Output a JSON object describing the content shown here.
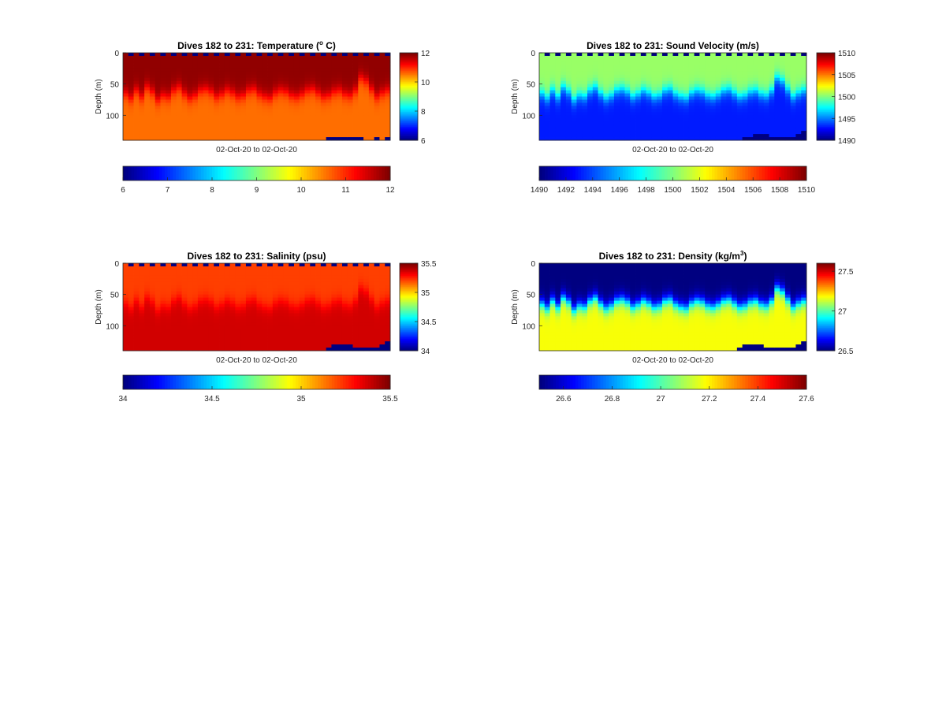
{
  "figure": {
    "background": "#ffffff",
    "colormap": "jet"
  },
  "chart_data": [
    {
      "type": "heatmap",
      "id": "temperature",
      "title_main": "Dives 182 to 231: Temperature (",
      "title_sup": "o",
      "title_tail": " C)",
      "xlabel": "02-Oct-20 to 02-Oct-20",
      "ylabel": "Depth (m)",
      "ylim": [
        0,
        140
      ],
      "yticks": [
        "0",
        "50",
        "100"
      ],
      "ytick_values": [
        0,
        50,
        100
      ],
      "n_columns": 50,
      "clim": [
        6,
        12
      ],
      "side_colorbar_ticks": [
        "6",
        "8",
        "10",
        "12"
      ],
      "side_colorbar_values": [
        6,
        8,
        10,
        12
      ],
      "bottom_colorbar_ticks": [
        "6",
        "7",
        "8",
        "9",
        "10",
        "11",
        "12"
      ],
      "bottom_colorbar_values": [
        6,
        7,
        8,
        9,
        10,
        11,
        12
      ],
      "surface_value": 11.9,
      "deep_value": 10.6,
      "transition_depth_m": [
        65,
        72,
        60,
        70,
        55,
        62,
        75,
        68,
        70,
        60,
        55,
        65,
        72,
        68,
        60,
        58,
        62,
        70,
        66,
        60,
        64,
        70,
        68,
        60,
        58,
        66,
        70,
        72,
        64,
        60,
        62,
        68,
        70,
        66,
        60,
        58,
        64,
        70,
        68,
        62,
        60,
        66,
        68,
        60,
        40,
        45,
        58,
        70,
        64,
        60
      ],
      "no_data_value": 6,
      "missing_bottom_depth_m": [
        140,
        140,
        140,
        140,
        140,
        140,
        140,
        140,
        140,
        140,
        140,
        140,
        140,
        140,
        140,
        140,
        140,
        140,
        140,
        140,
        140,
        140,
        140,
        140,
        140,
        140,
        140,
        140,
        140,
        140,
        140,
        140,
        140,
        140,
        140,
        140,
        140,
        140,
        137,
        133,
        133,
        135,
        136,
        136,
        137,
        138,
        138,
        136,
        138,
        133
      ]
    },
    {
      "type": "heatmap",
      "id": "sound-velocity",
      "title_main": "Dives 182 to 231: Sound Velocity (m/s)",
      "title_sup": "",
      "title_tail": "",
      "xlabel": "02-Oct-20 to 02-Oct-20",
      "ylabel": "Depth (m)",
      "ylim": [
        0,
        140
      ],
      "yticks": [
        "0",
        "50",
        "100"
      ],
      "ytick_values": [
        0,
        50,
        100
      ],
      "n_columns": 50,
      "clim": [
        1490,
        1510
      ],
      "side_colorbar_ticks": [
        "1490",
        "1495",
        "1500",
        "1505",
        "1510"
      ],
      "side_colorbar_values": [
        1490,
        1495,
        1500,
        1505,
        1510
      ],
      "bottom_colorbar_ticks": [
        "1490",
        "1492",
        "1494",
        "1496",
        "1498",
        "1500",
        "1502",
        "1504",
        "1506",
        "1508",
        "1510"
      ],
      "bottom_colorbar_values": [
        1490,
        1492,
        1494,
        1496,
        1498,
        1500,
        1502,
        1504,
        1506,
        1508,
        1510
      ],
      "surface_value": 1500.5,
      "deep_value": 1493,
      "transition_depth_m": [
        65,
        72,
        60,
        70,
        55,
        62,
        75,
        68,
        70,
        60,
        55,
        65,
        72,
        68,
        60,
        58,
        62,
        70,
        66,
        60,
        64,
        70,
        68,
        60,
        58,
        66,
        70,
        72,
        64,
        60,
        62,
        68,
        70,
        66,
        60,
        58,
        64,
        70,
        68,
        62,
        60,
        66,
        68,
        60,
        40,
        45,
        58,
        70,
        64,
        60
      ],
      "no_data_value": 1490,
      "missing_bottom_depth_m": [
        140,
        140,
        140,
        140,
        140,
        140,
        140,
        140,
        140,
        140,
        140,
        140,
        140,
        140,
        140,
        140,
        140,
        140,
        140,
        140,
        140,
        140,
        140,
        140,
        140,
        140,
        140,
        140,
        140,
        140,
        140,
        140,
        140,
        140,
        140,
        140,
        140,
        140,
        137,
        133,
        129,
        130,
        131,
        133,
        134,
        135,
        136,
        134,
        131,
        127
      ]
    },
    {
      "type": "heatmap",
      "id": "salinity",
      "title_main": "Dives 182 to 231: Salinity (psu)",
      "title_sup": "",
      "title_tail": "",
      "xlabel": "02-Oct-20 to 02-Oct-20",
      "ylabel": "Depth (m)",
      "ylim": [
        0,
        140
      ],
      "yticks": [
        "0",
        "50",
        "100"
      ],
      "ytick_values": [
        0,
        50,
        100
      ],
      "n_columns": 50,
      "clim": [
        34,
        35.5
      ],
      "side_colorbar_ticks": [
        "34",
        "34.5",
        "35",
        "35.5"
      ],
      "side_colorbar_values": [
        34,
        34.5,
        35,
        35.5
      ],
      "bottom_colorbar_ticks": [
        "34",
        "34.5",
        "35",
        "35.5"
      ],
      "bottom_colorbar_values": [
        34,
        34.5,
        35,
        35.5
      ],
      "surface_value": 35.22,
      "deep_value": 35.38,
      "transition_depth_m": [
        65,
        72,
        60,
        70,
        55,
        62,
        75,
        68,
        70,
        60,
        55,
        65,
        72,
        68,
        60,
        58,
        62,
        70,
        66,
        60,
        64,
        70,
        68,
        60,
        58,
        66,
        70,
        72,
        64,
        60,
        62,
        68,
        70,
        66,
        60,
        58,
        64,
        70,
        68,
        62,
        60,
        66,
        68,
        60,
        40,
        45,
        58,
        70,
        64,
        60
      ],
      "no_data_value": 34,
      "missing_bottom_depth_m": [
        140,
        140,
        140,
        140,
        140,
        140,
        140,
        140,
        140,
        140,
        140,
        140,
        140,
        140,
        140,
        140,
        140,
        140,
        140,
        140,
        140,
        140,
        140,
        140,
        140,
        140,
        140,
        140,
        140,
        140,
        140,
        140,
        140,
        140,
        140,
        140,
        140,
        140,
        135,
        130,
        128,
        129,
        131,
        133,
        135,
        134,
        136,
        134,
        130,
        126
      ]
    },
    {
      "type": "heatmap",
      "id": "density",
      "title_main": "Dives 182 to 231: Density (kg/m",
      "title_sup": "3",
      "title_tail": ")",
      "xlabel": "02-Oct-20 to 02-Oct-20",
      "ylabel": "Depth (m)",
      "ylim": [
        0,
        140
      ],
      "yticks": [
        "0",
        "50",
        "100"
      ],
      "ytick_values": [
        0,
        50,
        100
      ],
      "n_columns": 50,
      "clim": [
        26.5,
        27.6
      ],
      "side_colorbar_ticks": [
        "26.5",
        "27",
        "27.5"
      ],
      "side_colorbar_values": [
        26.5,
        27,
        27.5
      ],
      "bottom_colorbar_ticks": [
        "26.6",
        "26.8",
        "27",
        "27.2",
        "27.4",
        "27.6"
      ],
      "bottom_colorbar_values": [
        26.6,
        26.8,
        27,
        27.2,
        27.4,
        27.6
      ],
      "surface_value": 26.5,
      "deep_value": 27.18,
      "transition_depth_m": [
        65,
        72,
        60,
        70,
        55,
        62,
        75,
        68,
        70,
        60,
        55,
        65,
        72,
        68,
        60,
        58,
        62,
        70,
        66,
        60,
        64,
        70,
        68,
        60,
        58,
        66,
        70,
        72,
        64,
        60,
        62,
        68,
        70,
        66,
        60,
        58,
        64,
        70,
        68,
        62,
        60,
        66,
        68,
        60,
        40,
        45,
        58,
        70,
        64,
        60
      ],
      "no_data_value": 26.5,
      "missing_bottom_depth_m": [
        140,
        140,
        140,
        140,
        140,
        140,
        140,
        140,
        140,
        140,
        140,
        140,
        140,
        140,
        140,
        140,
        140,
        140,
        140,
        140,
        140,
        140,
        140,
        140,
        140,
        140,
        140,
        140,
        140,
        140,
        140,
        140,
        140,
        140,
        140,
        140,
        140,
        137,
        131,
        129,
        130,
        131,
        133,
        135,
        136,
        137,
        136,
        134,
        130,
        126
      ]
    }
  ]
}
